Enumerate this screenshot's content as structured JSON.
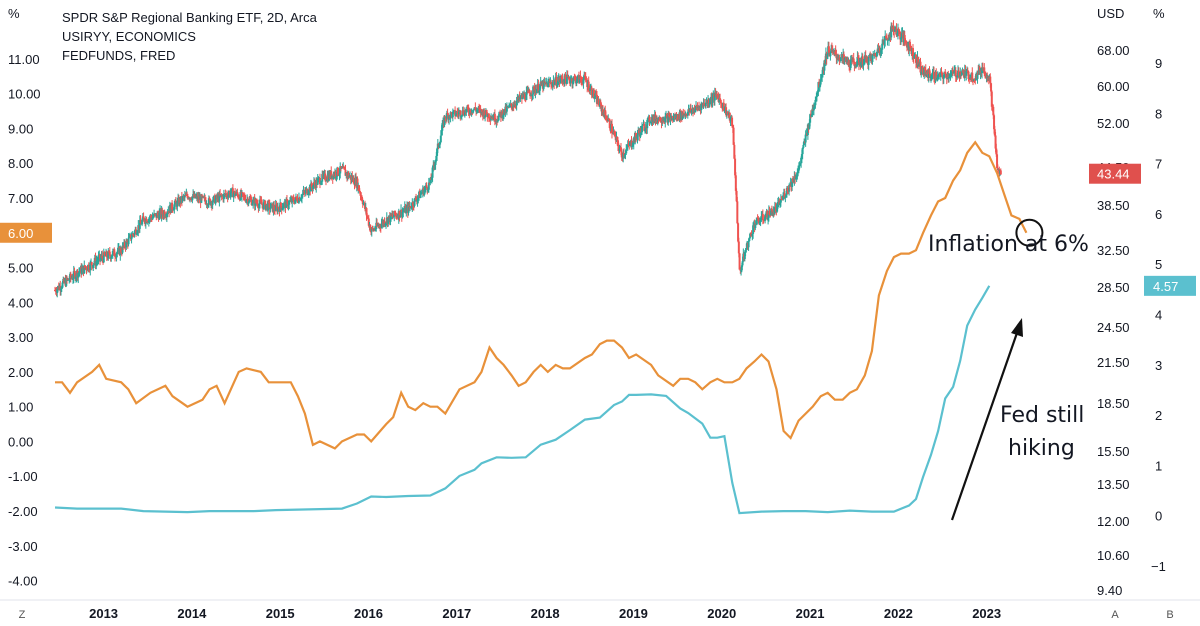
{
  "legend": {
    "line1": "SPDR S&P Regional Banking ETF, 2D, Arca",
    "line2": "USIRYY, ECONOMICS",
    "line3": "FEDFUNDS, FRED"
  },
  "colors": {
    "inflation": "#e8913a",
    "fedfunds": "#5bc0cf",
    "candle_up": "#26a69a",
    "candle_down": "#ef5350",
    "kre_tag": "#e0504d"
  },
  "axes": {
    "left_unit": "%",
    "left_ticks": [
      "11.00",
      "10.00",
      "9.00",
      "8.00",
      "7.00",
      "6.00",
      "5.00",
      "4.00",
      "3.00",
      "2.00",
      "1.00",
      "0.00",
      "-1.00",
      "-2.00",
      "-3.00",
      "-4.00"
    ],
    "left_tick_values": [
      11,
      10,
      9,
      8,
      7,
      6,
      5,
      4,
      3,
      2,
      1,
      0,
      -1,
      -2,
      -3,
      -4
    ],
    "usd_unit": "USD",
    "usd_ticks": [
      "68.00",
      "60.00",
      "52.00",
      "44.50",
      "38.50",
      "32.50",
      "28.50",
      "24.50",
      "21.50",
      "18.50",
      "15.50",
      "13.50",
      "12.00",
      "10.60",
      "9.40"
    ],
    "usd_tick_values": [
      68,
      60,
      52,
      44.5,
      38.5,
      32.5,
      28.5,
      24.5,
      21.5,
      18.5,
      15.5,
      13.5,
      12,
      10.6,
      9.4
    ],
    "right_unit": "%",
    "right_ticks": [
      "9",
      "8",
      "7",
      "6",
      "5",
      "4",
      "3",
      "2",
      "1",
      "0",
      "−1"
    ],
    "right_tick_values": [
      9,
      8,
      7,
      6,
      5,
      4,
      3,
      2,
      1,
      0,
      -1
    ],
    "years": [
      "2013",
      "2014",
      "2015",
      "2016",
      "2017",
      "2018",
      "2019",
      "2020",
      "2021",
      "2022",
      "2023"
    ],
    "year_values": [
      2013,
      2014,
      2015,
      2016,
      2017,
      2018,
      2019,
      2020,
      2021,
      2022,
      2023
    ],
    "corner_left": "Z",
    "corner_a": "A",
    "corner_b": "B"
  },
  "tags": {
    "left": "6.00",
    "kre": "43.44",
    "fed": "4.57"
  },
  "annotations": {
    "inflation": "Inflation at 6%",
    "fed_line1": "Fed still",
    "fed_line2": "hiking"
  },
  "chart_data": {
    "type": "line",
    "series": [
      {
        "name": "USIRYY, ECONOMICS",
        "unit": "%",
        "points": [
          [
            2012.5,
            1.7
          ],
          [
            2012.58,
            1.7
          ],
          [
            2012.67,
            1.4
          ],
          [
            2012.75,
            1.7
          ],
          [
            2012.92,
            2.0
          ],
          [
            2013.0,
            2.2
          ],
          [
            2013.08,
            1.8
          ],
          [
            2013.25,
            1.7
          ],
          [
            2013.33,
            1.5
          ],
          [
            2013.42,
            1.1
          ],
          [
            2013.58,
            1.4
          ],
          [
            2013.75,
            1.6
          ],
          [
            2013.83,
            1.3
          ],
          [
            2014.0,
            1.0
          ],
          [
            2014.17,
            1.2
          ],
          [
            2014.25,
            1.5
          ],
          [
            2014.33,
            1.6
          ],
          [
            2014.42,
            1.1
          ],
          [
            2014.58,
            2.0
          ],
          [
            2014.67,
            2.1
          ],
          [
            2014.83,
            2.0
          ],
          [
            2014.92,
            1.7
          ],
          [
            2015.08,
            1.7
          ],
          [
            2015.17,
            1.7
          ],
          [
            2015.25,
            1.3
          ],
          [
            2015.33,
            0.8
          ],
          [
            2015.42,
            -0.1
          ],
          [
            2015.5,
            0.0
          ],
          [
            2015.67,
            -0.2
          ],
          [
            2015.75,
            0.0
          ],
          [
            2015.92,
            0.2
          ],
          [
            2016.0,
            0.2
          ],
          [
            2016.08,
            0.0
          ],
          [
            2016.25,
            0.5
          ],
          [
            2016.33,
            0.7
          ],
          [
            2016.42,
            1.4
          ],
          [
            2016.5,
            1.0
          ],
          [
            2016.58,
            0.9
          ],
          [
            2016.67,
            1.1
          ],
          [
            2016.75,
            1.0
          ],
          [
            2016.83,
            1.0
          ],
          [
            2016.92,
            0.8
          ],
          [
            2017.08,
            1.5
          ],
          [
            2017.25,
            1.7
          ],
          [
            2017.33,
            2.0
          ],
          [
            2017.42,
            2.7
          ],
          [
            2017.5,
            2.4
          ],
          [
            2017.58,
            2.2
          ],
          [
            2017.67,
            1.9
          ],
          [
            2017.75,
            1.6
          ],
          [
            2017.83,
            1.7
          ],
          [
            2017.92,
            2.0
          ],
          [
            2018.0,
            2.2
          ],
          [
            2018.08,
            2.0
          ],
          [
            2018.17,
            2.2
          ],
          [
            2018.25,
            2.1
          ],
          [
            2018.33,
            2.1
          ],
          [
            2018.5,
            2.4
          ],
          [
            2018.58,
            2.5
          ],
          [
            2018.67,
            2.8
          ],
          [
            2018.75,
            2.9
          ],
          [
            2018.83,
            2.9
          ],
          [
            2018.92,
            2.7
          ],
          [
            2019.0,
            2.4
          ],
          [
            2019.08,
            2.5
          ],
          [
            2019.25,
            2.2
          ],
          [
            2019.33,
            1.9
          ],
          [
            2019.5,
            1.6
          ],
          [
            2019.58,
            1.8
          ],
          [
            2019.67,
            1.8
          ],
          [
            2019.75,
            1.7
          ],
          [
            2019.83,
            1.5
          ],
          [
            2019.92,
            1.7
          ],
          [
            2020.0,
            1.8
          ],
          [
            2020.08,
            1.7
          ],
          [
            2020.17,
            1.7
          ],
          [
            2020.25,
            1.8
          ],
          [
            2020.33,
            2.1
          ],
          [
            2020.42,
            2.3
          ],
          [
            2020.5,
            2.5
          ],
          [
            2020.58,
            2.3
          ],
          [
            2020.67,
            1.5
          ],
          [
            2020.75,
            0.3
          ],
          [
            2020.83,
            0.1
          ],
          [
            2020.92,
            0.6
          ],
          [
            2021.08,
            1.0
          ],
          [
            2021.17,
            1.3
          ],
          [
            2021.25,
            1.4
          ],
          [
            2021.33,
            1.2
          ],
          [
            2021.42,
            1.2
          ],
          [
            2021.5,
            1.4
          ],
          [
            2021.58,
            1.5
          ],
          [
            2021.67,
            1.9
          ],
          [
            2021.75,
            2.6
          ],
          [
            2021.83,
            4.2
          ],
          [
            2021.92,
            4.9
          ],
          [
            2022.0,
            5.3
          ],
          [
            2022.08,
            5.4
          ],
          [
            2022.17,
            5.4
          ],
          [
            2022.25,
            5.5
          ],
          [
            2022.33,
            6.0
          ],
          [
            2022.42,
            6.5
          ],
          [
            2022.5,
            6.9
          ],
          [
            2022.58,
            7.0
          ],
          [
            2022.67,
            7.5
          ],
          [
            2022.75,
            7.8
          ],
          [
            2022.83,
            8.3
          ],
          [
            2022.92,
            8.6
          ],
          [
            2023.0,
            8.3
          ],
          [
            2023.08,
            8.2
          ],
          [
            2023.17,
            7.7
          ],
          [
            2023.25,
            7.1
          ],
          [
            2023.33,
            6.5
          ],
          [
            2023.42,
            6.4
          ],
          [
            2023.5,
            6.0
          ]
        ]
      },
      {
        "name": "FEDFUNDS, FRED",
        "unit": "%",
        "points": [
          [
            2012.5,
            0.16
          ],
          [
            2012.75,
            0.14
          ],
          [
            2013.0,
            0.14
          ],
          [
            2013.25,
            0.14
          ],
          [
            2013.5,
            0.09
          ],
          [
            2013.75,
            0.08
          ],
          [
            2014.0,
            0.07
          ],
          [
            2014.25,
            0.09
          ],
          [
            2014.5,
            0.09
          ],
          [
            2014.75,
            0.09
          ],
          [
            2015.0,
            0.11
          ],
          [
            2015.25,
            0.12
          ],
          [
            2015.5,
            0.13
          ],
          [
            2015.75,
            0.14
          ],
          [
            2015.92,
            0.24
          ],
          [
            2016.08,
            0.38
          ],
          [
            2016.25,
            0.37
          ],
          [
            2016.5,
            0.39
          ],
          [
            2016.75,
            0.4
          ],
          [
            2016.92,
            0.54
          ],
          [
            2017.08,
            0.79
          ],
          [
            2017.25,
            0.91
          ],
          [
            2017.33,
            1.04
          ],
          [
            2017.5,
            1.16
          ],
          [
            2017.67,
            1.15
          ],
          [
            2017.83,
            1.16
          ],
          [
            2018.0,
            1.41
          ],
          [
            2018.17,
            1.51
          ],
          [
            2018.33,
            1.7
          ],
          [
            2018.5,
            1.91
          ],
          [
            2018.67,
            1.95
          ],
          [
            2018.83,
            2.2
          ],
          [
            2018.92,
            2.27
          ],
          [
            2019.0,
            2.4
          ],
          [
            2019.08,
            2.4
          ],
          [
            2019.25,
            2.41
          ],
          [
            2019.42,
            2.38
          ],
          [
            2019.58,
            2.13
          ],
          [
            2019.67,
            2.04
          ],
          [
            2019.83,
            1.83
          ],
          [
            2019.92,
            1.55
          ],
          [
            2020.0,
            1.55
          ],
          [
            2020.08,
            1.58
          ],
          [
            2020.17,
            0.65
          ],
          [
            2020.25,
            0.05
          ],
          [
            2020.5,
            0.08
          ],
          [
            2020.75,
            0.09
          ],
          [
            2021.0,
            0.09
          ],
          [
            2021.25,
            0.07
          ],
          [
            2021.5,
            0.1
          ],
          [
            2021.75,
            0.08
          ],
          [
            2022.0,
            0.08
          ],
          [
            2022.17,
            0.2
          ],
          [
            2022.25,
            0.33
          ],
          [
            2022.33,
            0.77
          ],
          [
            2022.42,
            1.21
          ],
          [
            2022.5,
            1.68
          ],
          [
            2022.58,
            2.33
          ],
          [
            2022.67,
            2.56
          ],
          [
            2022.75,
            3.08
          ],
          [
            2022.83,
            3.78
          ],
          [
            2022.92,
            4.1
          ],
          [
            2023.0,
            4.33
          ],
          [
            2023.08,
            4.57
          ]
        ]
      }
    ],
    "kre": {
      "name": "SPDR S&P Regional Banking ETF, 2D, Arca",
      "unit": "USD",
      "last": 43.44,
      "path": [
        [
          2012.5,
          28.2
        ],
        [
          2012.75,
          30.0
        ],
        [
          2013.0,
          31.5
        ],
        [
          2013.25,
          32.5
        ],
        [
          2013.5,
          36.5
        ],
        [
          2013.75,
          37.5
        ],
        [
          2014.0,
          40.0
        ],
        [
          2014.25,
          39.0
        ],
        [
          2014.5,
          40.5
        ],
        [
          2014.75,
          39.0
        ],
        [
          2015.0,
          38.0
        ],
        [
          2015.25,
          39.5
        ],
        [
          2015.5,
          42.5
        ],
        [
          2015.75,
          44.0
        ],
        [
          2015.92,
          42.0
        ],
        [
          2016.08,
          35.0
        ],
        [
          2016.25,
          36.5
        ],
        [
          2016.5,
          38.0
        ],
        [
          2016.75,
          42.0
        ],
        [
          2016.92,
          53.5
        ],
        [
          2017.25,
          55.0
        ],
        [
          2017.5,
          53.0
        ],
        [
          2017.75,
          57.0
        ],
        [
          2018.0,
          60.0
        ],
        [
          2018.25,
          61.5
        ],
        [
          2018.5,
          61.5
        ],
        [
          2018.75,
          53.0
        ],
        [
          2018.92,
          46.5
        ],
        [
          2019.25,
          53.0
        ],
        [
          2019.5,
          53.0
        ],
        [
          2019.75,
          55.0
        ],
        [
          2020.0,
          58.0
        ],
        [
          2020.17,
          52.0
        ],
        [
          2020.25,
          30.0
        ],
        [
          2020.42,
          36.0
        ],
        [
          2020.67,
          38.0
        ],
        [
          2020.92,
          44.0
        ],
        [
          2021.08,
          55.0
        ],
        [
          2021.25,
          68.0
        ],
        [
          2021.5,
          65.0
        ],
        [
          2021.75,
          66.0
        ],
        [
          2022.0,
          73.0
        ],
        [
          2022.17,
          69.0
        ],
        [
          2022.33,
          63.0
        ],
        [
          2022.5,
          62.0
        ],
        [
          2022.75,
          63.0
        ],
        [
          2022.92,
          62.0
        ],
        [
          2023.0,
          64.0
        ],
        [
          2023.08,
          62.0
        ],
        [
          2023.17,
          44.0
        ],
        [
          2023.21,
          43.44
        ]
      ]
    },
    "x_range": [
      2012.5,
      2023.45
    ],
    "left_ylim": [
      -4.3,
      11.6
    ],
    "right_ylim": [
      -1.5,
      9.5
    ],
    "grid": false,
    "legend_position": "top-left"
  }
}
